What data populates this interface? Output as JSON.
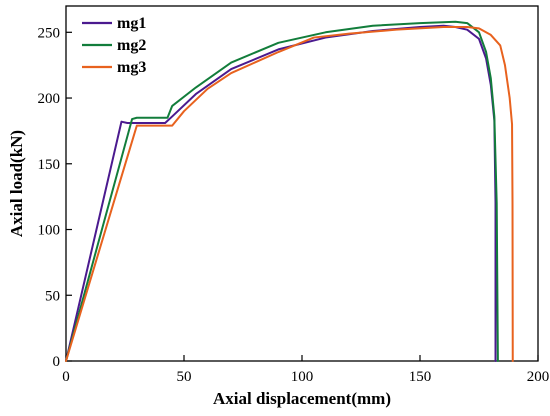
{
  "chart_data": {
    "type": "line",
    "title": "",
    "xlabel": "Axial displacement(mm)",
    "ylabel": "Axial load(kN)",
    "xlim": [
      0,
      200
    ],
    "ylim": [
      0,
      270
    ],
    "xticks": [
      0,
      50,
      100,
      150,
      200
    ],
    "yticks": [
      0,
      50,
      100,
      150,
      200,
      250
    ],
    "grid": false,
    "legend_position": "top-left",
    "series": [
      {
        "name": "mg1",
        "color": "#4b1a8f",
        "points": [
          [
            0,
            0
          ],
          [
            23.5,
            182
          ],
          [
            26,
            181
          ],
          [
            30,
            181
          ],
          [
            42,
            181
          ],
          [
            45,
            186
          ],
          [
            55,
            203
          ],
          [
            70,
            222
          ],
          [
            90,
            237
          ],
          [
            110,
            246
          ],
          [
            130,
            251
          ],
          [
            150,
            254
          ],
          [
            160,
            255
          ],
          [
            165,
            254
          ],
          [
            170,
            252
          ],
          [
            175,
            245
          ],
          [
            178,
            230
          ],
          [
            180,
            210
          ],
          [
            181.5,
            183
          ],
          [
            182,
            120
          ],
          [
            182,
            0
          ]
        ]
      },
      {
        "name": "mg2",
        "color": "#127d3b",
        "points": [
          [
            0,
            0
          ],
          [
            28,
            184
          ],
          [
            30,
            185
          ],
          [
            40,
            185
          ],
          [
            43,
            185
          ],
          [
            45,
            194
          ],
          [
            55,
            208
          ],
          [
            70,
            227
          ],
          [
            90,
            242
          ],
          [
            110,
            250
          ],
          [
            130,
            255
          ],
          [
            150,
            257
          ],
          [
            165,
            258
          ],
          [
            170,
            257
          ],
          [
            175,
            250
          ],
          [
            178,
            235
          ],
          [
            180,
            215
          ],
          [
            181.5,
            186
          ],
          [
            182.5,
            120
          ],
          [
            183,
            0
          ]
        ]
      },
      {
        "name": "mg3",
        "color": "#e8621e",
        "points": [
          [
            0,
            0
          ],
          [
            30,
            179
          ],
          [
            35,
            179
          ],
          [
            40,
            179
          ],
          [
            45,
            179
          ],
          [
            50,
            190
          ],
          [
            60,
            207
          ],
          [
            70,
            219
          ],
          [
            90,
            235
          ],
          [
            105,
            246
          ],
          [
            120,
            249
          ],
          [
            140,
            252
          ],
          [
            160,
            254
          ],
          [
            170,
            254
          ],
          [
            175,
            253
          ],
          [
            180,
            248
          ],
          [
            184,
            240
          ],
          [
            186,
            225
          ],
          [
            188,
            200
          ],
          [
            189,
            180
          ],
          [
            189.2,
            120
          ],
          [
            189.3,
            0
          ]
        ]
      }
    ]
  }
}
